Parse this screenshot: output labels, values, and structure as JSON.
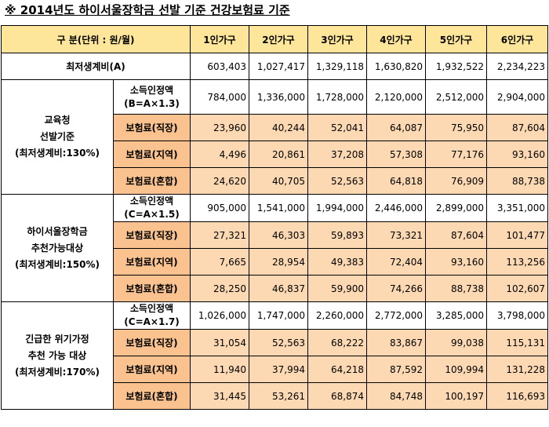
{
  "title": "※ 2014년도 하이서울장학금 선발 기준 건강보험료 기준",
  "header": {
    "corner": "구 분(단위 : 원/월)",
    "cols": [
      "1인가구",
      "2인가구",
      "3인가구",
      "4인가구",
      "5인가구",
      "6인가구"
    ]
  },
  "min_living": {
    "label": "최저생계비(A)",
    "values": [
      "603,403",
      "1,027,417",
      "1,329,118",
      "1,630,820",
      "1,932,522",
      "2,234,223"
    ]
  },
  "groups": [
    {
      "lines": [
        "교육청",
        "선발기준",
        "(최저생계비:130%)"
      ],
      "income_label": [
        "소득인정액",
        "(B=A×1.3)"
      ],
      "income": [
        "784,000",
        "1,336,000",
        "1,728,000",
        "2,120,000",
        "2,512,000",
        "2,904,000"
      ],
      "ins": [
        {
          "label": "보험료(직장)",
          "values": [
            "23,960",
            "40,244",
            "52,041",
            "64,087",
            "75,950",
            "87,604"
          ]
        },
        {
          "label": "보험료(지역)",
          "values": [
            "4,496",
            "20,861",
            "37,208",
            "57,308",
            "77,176",
            "93,160"
          ]
        },
        {
          "label": "보험료(혼합)",
          "values": [
            "24,620",
            "40,705",
            "52,563",
            "64,818",
            "76,909",
            "88,738"
          ]
        }
      ]
    },
    {
      "lines": [
        "하이서울장학금",
        "추천가능대상",
        "(최저생계비:150%)"
      ],
      "income_label": [
        "소득인정액",
        "(C=A×1.5)"
      ],
      "income": [
        "905,000",
        "1,541,000",
        "1,994,000",
        "2,446,000",
        "2,899,000",
        "3,351,000"
      ],
      "ins": [
        {
          "label": "보험료(직장)",
          "values": [
            "27,321",
            "46,303",
            "59,893",
            "73,321",
            "87,604",
            "101,477"
          ]
        },
        {
          "label": "보험료(지역)",
          "values": [
            "7,665",
            "28,954",
            "49,383",
            "72,404",
            "93,160",
            "113,256"
          ]
        },
        {
          "label": "보험료(혼합)",
          "values": [
            "28,250",
            "46,837",
            "59,900",
            "74,266",
            "88,738",
            "102,607"
          ]
        }
      ]
    },
    {
      "lines": [
        "긴급한 위기가정",
        "추천 가능 대상",
        "(최저생계비:170%)"
      ],
      "income_label": [
        "소득인정액",
        "(C=A×1.7)"
      ],
      "income": [
        "1,026,000",
        "1,747,000",
        "2,260,000",
        "2,772,000",
        "3,285,000",
        "3,798,000"
      ],
      "ins": [
        {
          "label": "보험료(직장)",
          "values": [
            "31,054",
            "52,563",
            "68,222",
            "83,867",
            "99,038",
            "115,131"
          ]
        },
        {
          "label": "보험료(지역)",
          "values": [
            "11,940",
            "37,994",
            "64,218",
            "87,592",
            "109,994",
            "131,228"
          ]
        },
        {
          "label": "보험료(혼합)",
          "values": [
            "31,445",
            "53,261",
            "68,874",
            "84,748",
            "100,197",
            "116,693"
          ]
        }
      ]
    }
  ]
}
